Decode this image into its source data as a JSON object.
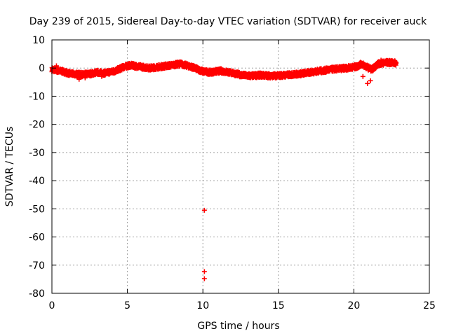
{
  "chart_data": {
    "type": "scatter",
    "title": "Day 239 of 2015, Sidereal Day-to-day VTEC variation (SDTVAR) for receiver auck",
    "xlabel": "GPS time / hours",
    "ylabel": "SDTVAR / TECUs",
    "xlim": [
      0,
      25
    ],
    "ylim": [
      -80,
      10
    ],
    "xticks": [
      0,
      5,
      10,
      15,
      20,
      25
    ],
    "yticks": [
      10,
      0,
      -10,
      -20,
      -30,
      -40,
      -50,
      -60,
      -70,
      -80
    ],
    "grid": true,
    "marker": "plus",
    "color": "#ff0000",
    "series": [
      {
        "name": "SDTVAR",
        "trend": [
          [
            0.0,
            -0.5
          ],
          [
            0.7,
            -1.2
          ],
          [
            1.2,
            -2.0
          ],
          [
            2.0,
            -2.3
          ],
          [
            2.6,
            -2.0
          ],
          [
            3.0,
            -1.5
          ],
          [
            3.5,
            -1.8
          ],
          [
            4.2,
            -1.0
          ],
          [
            4.8,
            0.5
          ],
          [
            5.2,
            1.0
          ],
          [
            5.8,
            0.5
          ],
          [
            6.5,
            0.0
          ],
          [
            7.2,
            0.5
          ],
          [
            7.9,
            1.0
          ],
          [
            8.5,
            1.5
          ],
          [
            9.2,
            0.5
          ],
          [
            10.0,
            -1.2
          ],
          [
            10.5,
            -1.5
          ],
          [
            11.2,
            -1.0
          ],
          [
            12.0,
            -1.8
          ],
          [
            12.6,
            -2.5
          ],
          [
            13.2,
            -2.8
          ],
          [
            13.8,
            -2.5
          ],
          [
            14.6,
            -2.8
          ],
          [
            15.5,
            -2.5
          ],
          [
            16.5,
            -2.0
          ],
          [
            17.5,
            -1.2
          ],
          [
            18.5,
            -0.5
          ],
          [
            19.5,
            0.0
          ],
          [
            20.2,
            0.5
          ],
          [
            20.5,
            1.5
          ],
          [
            20.8,
            0.5
          ],
          [
            21.2,
            -0.5
          ],
          [
            21.6,
            1.5
          ],
          [
            22.2,
            2.0
          ],
          [
            22.8,
            1.8
          ]
        ],
        "extra_points": [
          [
            0.3,
            0.8
          ],
          [
            1.8,
            -4.0
          ],
          [
            2.2,
            -3.5
          ],
          [
            3.3,
            -3.0
          ],
          [
            9.5,
            -0.3
          ],
          [
            13.0,
            -3.3
          ],
          [
            20.6,
            -3.0
          ],
          [
            20.9,
            -5.5
          ],
          [
            21.1,
            -4.5
          ],
          [
            21.8,
            2.8
          ],
          [
            10.1,
            -50.5
          ],
          [
            10.1,
            -72.3
          ],
          [
            10.1,
            -74.8
          ]
        ]
      }
    ]
  }
}
